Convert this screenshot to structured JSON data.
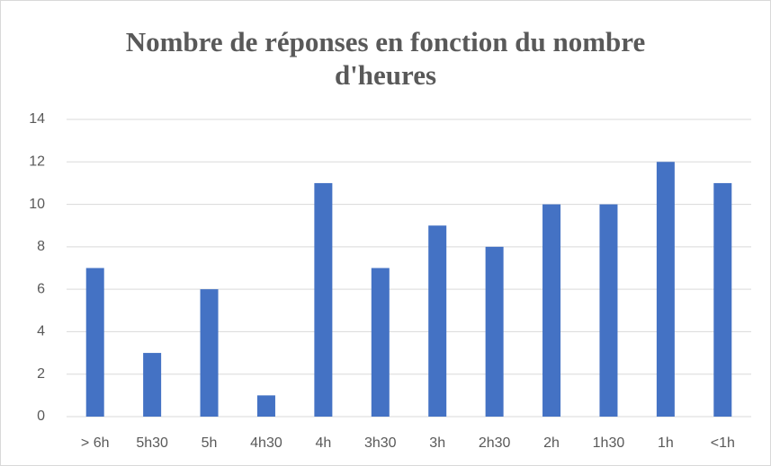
{
  "chart_data": {
    "type": "bar",
    "title": "Nombre de réponses en fonction du nombre d'heures",
    "categories": [
      "> 6h",
      "5h30",
      "5h",
      "4h30",
      "4h",
      "3h30",
      "3h",
      "2h30",
      "2h",
      "1h30",
      "1h",
      "<1h"
    ],
    "values": [
      7,
      3,
      6,
      1,
      11,
      7,
      9,
      8,
      10,
      10,
      12,
      11
    ],
    "color": "#4472c4",
    "ylim": [
      0,
      14
    ],
    "yticks": [
      0,
      2,
      4,
      6,
      8,
      10,
      12,
      14
    ],
    "grid": true
  }
}
